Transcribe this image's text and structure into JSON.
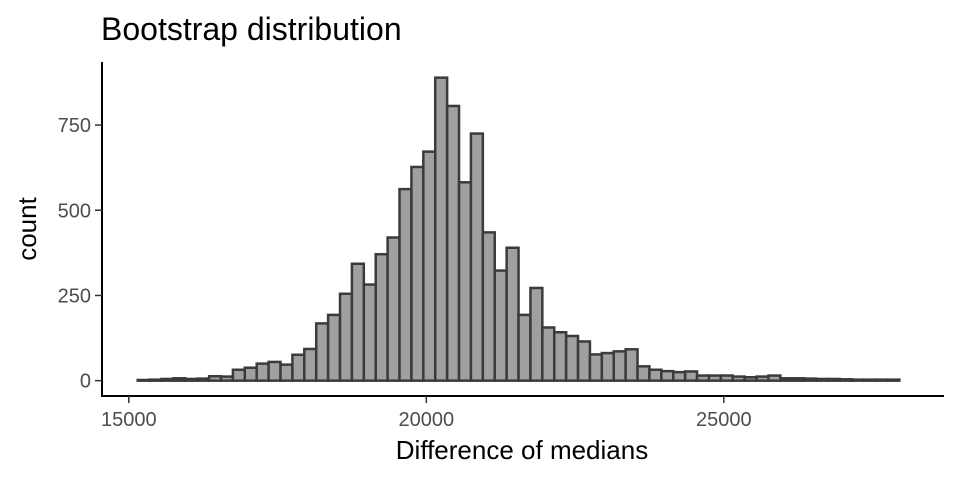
{
  "chart_data": {
    "type": "bar",
    "title": "Bootstrap distribution",
    "xlabel": "Difference of medians",
    "ylabel": "count",
    "xlim": [
      14550,
      28700
    ],
    "ylim": [
      -45,
      935
    ],
    "x_ticks": [
      15000,
      20000,
      25000
    ],
    "x_tick_labels": [
      "15000",
      "20000",
      "25000"
    ],
    "y_ticks": [
      0,
      250,
      500,
      750
    ],
    "y_tick_labels": [
      "0",
      "250",
      "500",
      "750"
    ],
    "grid": false,
    "legend": "none",
    "bin_width": 200,
    "bin_start": 15250,
    "series": [
      {
        "values": [
          2,
          3,
          5,
          7,
          5,
          6,
          13,
          12,
          32,
          38,
          50,
          55,
          47,
          76,
          93,
          168,
          193,
          255,
          343,
          282,
          371,
          420,
          562,
          627,
          672,
          889,
          806,
          582,
          725,
          435,
          323,
          390,
          193,
          272,
          156,
          142,
          131,
          115,
          77,
          81,
          86,
          92,
          42,
          32,
          28,
          25,
          27,
          15,
          15,
          15,
          12,
          10,
          12,
          15,
          7,
          7,
          6,
          5,
          5,
          4,
          3,
          3,
          3,
          3
        ]
      }
    ],
    "colors": {
      "bar_fill": "#a0a0a0",
      "bar_stroke": "#3b3b3b"
    }
  }
}
